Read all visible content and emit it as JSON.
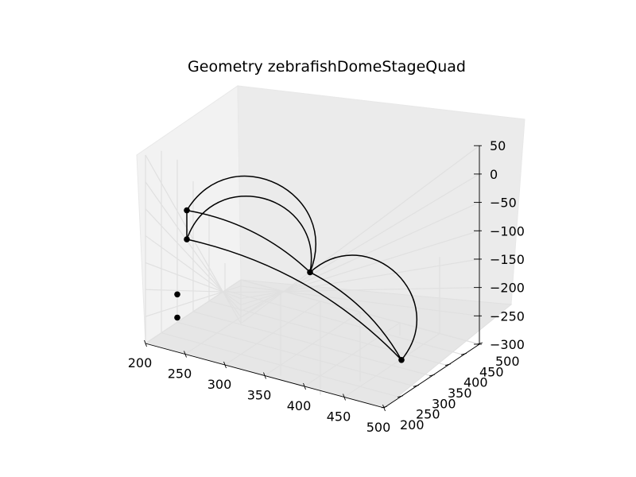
{
  "chart_data": {
    "type": "scatter",
    "title": "Geometry zebrafishDomeStageQuad",
    "xlabel": "",
    "ylabel": "",
    "zlabel": "",
    "xlim": [
      200,
      500
    ],
    "ylim": [
      200,
      500
    ],
    "zlim": [
      -300,
      50
    ],
    "x_ticks": [
      "200",
      "250",
      "300",
      "350",
      "400",
      "450",
      "500"
    ],
    "y_ticks": [
      "200",
      "250",
      "300",
      "350",
      "400",
      "450",
      "500"
    ],
    "z_ticks": [
      "50",
      "0",
      "−50",
      "−100",
      "−150",
      "−200",
      "−250",
      "−300"
    ],
    "grid": true,
    "points": [
      {
        "x": 200,
        "y": 330,
        "z": -45
      },
      {
        "x": 200,
        "y": 330,
        "z": -115
      },
      {
        "x": 355,
        "y": 330,
        "z": -180
      },
      {
        "x": 470,
        "y": 330,
        "z": -290
      },
      {
        "x": 200,
        "y": 300,
        "z": -240
      },
      {
        "x": 200,
        "y": 300,
        "z": -290
      }
    ],
    "edges": [
      {
        "from": 0,
        "to": 1,
        "type": "line"
      },
      {
        "from": 0,
        "to": 2,
        "type": "arc"
      },
      {
        "from": 0,
        "to": 2,
        "type": "dome"
      },
      {
        "from": 1,
        "to": 2,
        "type": "dome"
      },
      {
        "from": 1,
        "to": 3,
        "type": "arc"
      },
      {
        "from": 2,
        "to": 3,
        "type": "arc"
      },
      {
        "from": 2,
        "to": 3,
        "type": "dome"
      }
    ]
  }
}
